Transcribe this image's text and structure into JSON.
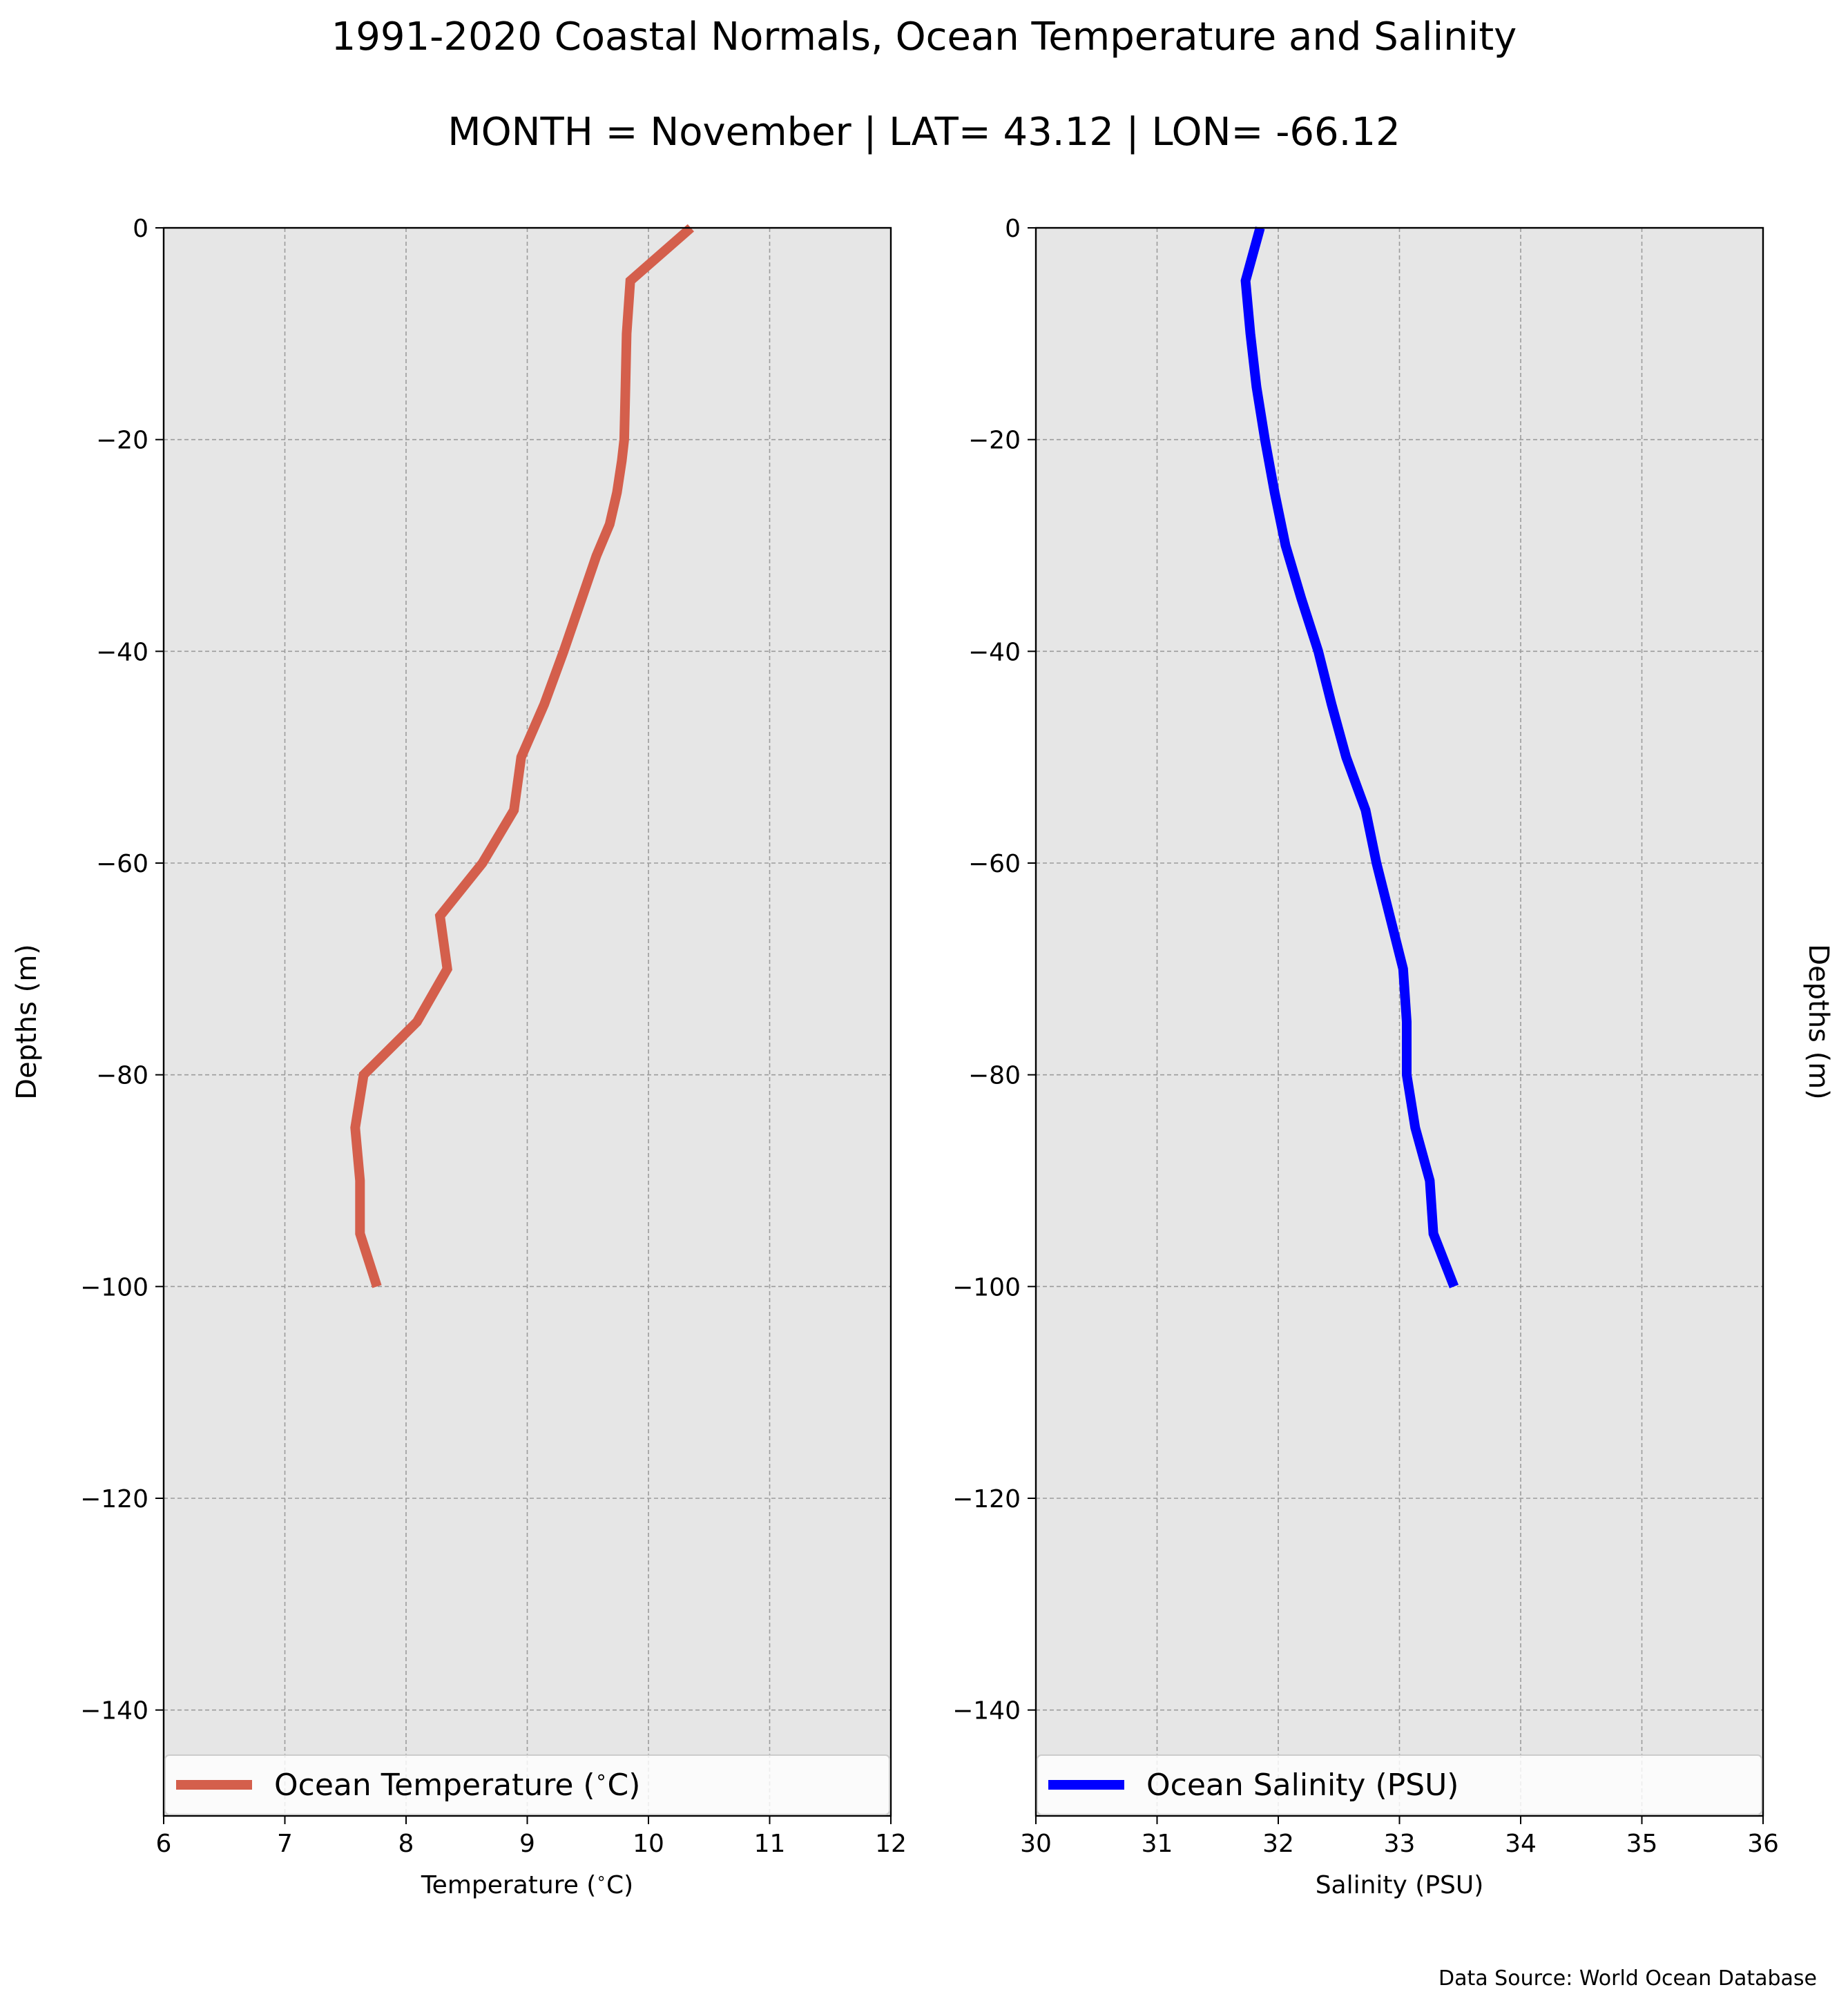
{
  "figure": {
    "title": "1991-2020 Coastal Normals, Ocean Temperature and Salinity",
    "subtitle": "MONTH = November | LAT= 43.12 | LON= -66.12",
    "source_note": "Data Source: World Ocean Database"
  },
  "chart_data": [
    {
      "type": "line",
      "xlabel": "Temperature ($^\\circ$C)",
      "ylabel": "Depths (m)",
      "ylabel_side": "left",
      "xlim": [
        6,
        12
      ],
      "ylim": [
        -150,
        0
      ],
      "xticks": [
        6,
        7,
        8,
        9,
        10,
        11,
        12
      ],
      "yticks": [
        0,
        -20,
        -40,
        -60,
        -80,
        -100,
        -120,
        -140
      ],
      "xtick_labels": [
        "6",
        "7",
        "8",
        "9",
        "10",
        "11",
        "12"
      ],
      "ytick_labels": [
        "0",
        "−20",
        "−40",
        "−60",
        "−80",
        "−100",
        "−120",
        "−140"
      ],
      "grid": true,
      "legend_position": "bottom",
      "series": [
        {
          "name": "Ocean Temperature ($^\\circ$C)",
          "color": "#d45f4c",
          "x": [
            10.35,
            9.85,
            9.82,
            9.81,
            9.8,
            9.78,
            9.74,
            9.68,
            9.57,
            9.45,
            9.3,
            9.14,
            8.95,
            8.89,
            8.63,
            8.28,
            8.34,
            8.09,
            7.65,
            7.58,
            7.62,
            7.62,
            7.76
          ],
          "y": [
            0,
            -5,
            -10,
            -15,
            -20,
            -22,
            -25,
            -28,
            -31,
            -35,
            -40,
            -45,
            -50,
            -55,
            -60,
            -65,
            -70,
            -75,
            -80,
            -85,
            -90,
            -95,
            -100
          ]
        }
      ]
    },
    {
      "type": "line",
      "xlabel": "Salinity (PSU)",
      "ylabel": "Depths (m)",
      "ylabel_side": "right",
      "xlim": [
        30,
        36
      ],
      "ylim": [
        -150,
        0
      ],
      "xticks": [
        30,
        31,
        32,
        33,
        34,
        35,
        36
      ],
      "yticks": [
        0,
        -20,
        -40,
        -60,
        -80,
        -100,
        -120,
        -140
      ],
      "xtick_labels": [
        "30",
        "31",
        "32",
        "33",
        "34",
        "35",
        "36"
      ],
      "ytick_labels": [
        "0",
        "−20",
        "−40",
        "−60",
        "−80",
        "−100",
        "−120",
        "−140"
      ],
      "grid": true,
      "legend_position": "bottom",
      "series": [
        {
          "name": "Ocean Salinity (PSU)",
          "color": "#0000ff",
          "x": [
            31.85,
            31.73,
            31.77,
            31.82,
            31.89,
            31.97,
            32.06,
            32.19,
            32.33,
            32.44,
            32.56,
            32.72,
            32.81,
            32.92,
            33.03,
            33.06,
            33.06,
            33.13,
            33.25,
            33.28,
            33.45
          ],
          "y": [
            0,
            -5,
            -10,
            -15,
            -20,
            -25,
            -30,
            -35,
            -40,
            -45,
            -50,
            -55,
            -60,
            -65,
            -70,
            -75,
            -80,
            -85,
            -90,
            -95,
            -100
          ]
        }
      ]
    }
  ]
}
